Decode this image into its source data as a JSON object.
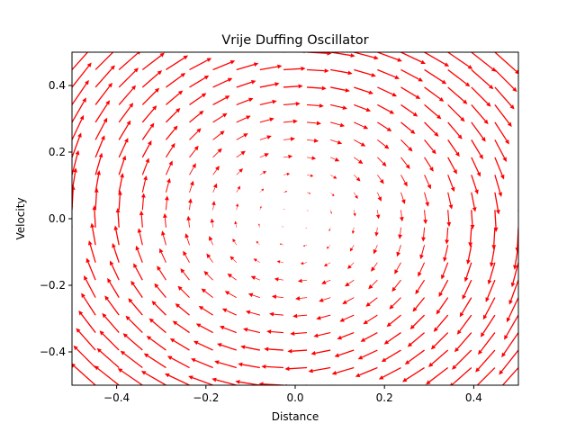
{
  "chart_data": {
    "type": "quiver",
    "title": "Vrije Duffing Oscillator",
    "xlabel": "Distance",
    "ylabel": "Velocity",
    "xlim": [
      -0.5,
      0.5
    ],
    "ylim": [
      -0.5,
      0.5
    ],
    "xticks": [
      -0.4,
      -0.2,
      0.0,
      0.2,
      0.4
    ],
    "xtick_labels": [
      "−0.4",
      "−0.2",
      "0.0",
      "0.2",
      "0.4"
    ],
    "yticks": [
      -0.4,
      -0.2,
      0.0,
      0.2,
      0.4
    ],
    "ytick_labels": [
      "−0.4",
      "−0.2",
      "0.0",
      "0.2",
      "0.4"
    ],
    "grid": false,
    "arrow_color": "#ff0000",
    "field": {
      "x_range": [
        -0.5,
        0.5
      ],
      "y_range": [
        -0.5,
        0.5
      ],
      "samples": 20,
      "equation": "dx/dt = y, dy/dt = -x",
      "dx": "y",
      "dy": "-x"
    }
  }
}
